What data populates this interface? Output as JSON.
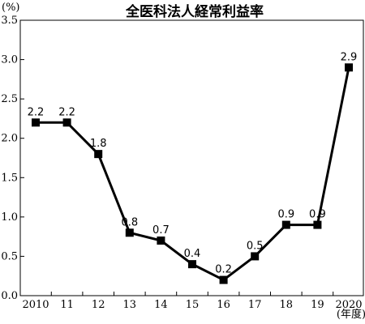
{
  "chart_data": {
    "type": "line",
    "title": "全医科法人経常利益率",
    "y_unit": "(%)",
    "x_unit": "(年度)",
    "categories": [
      "2010",
      "11",
      "12",
      "13",
      "14",
      "15",
      "16",
      "17",
      "18",
      "19",
      "2020"
    ],
    "series": [
      {
        "values": [
          2.2,
          2.2,
          1.8,
          0.8,
          0.7,
          0.4,
          0.2,
          0.5,
          0.9,
          0.9,
          2.9
        ],
        "labels": [
          "2.2",
          "2.2",
          "1.8",
          "0.8",
          "0.7",
          "0.4",
          "0.2",
          "0.5",
          "0.9",
          "0.9",
          "2.9"
        ]
      }
    ],
    "ylim": [
      0,
      3.5
    ],
    "yticks": [
      0,
      0.5,
      1.0,
      1.5,
      2.0,
      2.5,
      3.0,
      3.5
    ],
    "ytick_labels": [
      "0.0",
      "0.5",
      "1.0",
      "1.5",
      "2.0",
      "2.5",
      "3.0",
      "3.5"
    ],
    "grid": false,
    "line_color": "#000000",
    "marker": "square"
  }
}
